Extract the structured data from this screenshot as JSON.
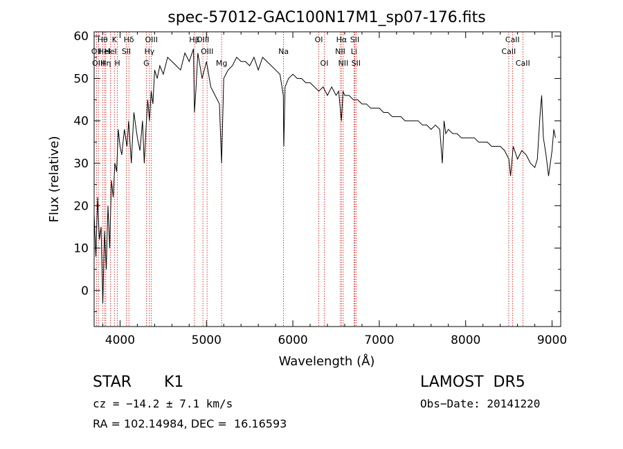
{
  "chart_data": {
    "type": "line",
    "title": "spec-57012-GAC100N17M1_sp07-176.fits",
    "xlabel": "Wavelength (Å)",
    "ylabel": "Flux (relative)",
    "xlim": [
      3700,
      9100
    ],
    "ylim": [
      -8.5,
      61
    ],
    "xticks": [
      4000,
      5000,
      6000,
      7000,
      8000,
      9000
    ],
    "yticks": [
      0,
      10,
      20,
      30,
      40,
      50,
      60
    ],
    "grid": false,
    "line_color": "#000000",
    "line_marker_color": "#cc0000",
    "series": [
      {
        "x": [
          3700,
          3720,
          3740,
          3760,
          3780,
          3800,
          3820,
          3840,
          3860,
          3880,
          3900,
          3920,
          3940,
          3960,
          3980,
          4000,
          4020,
          4050,
          4080,
          4100,
          4130,
          4160,
          4200,
          4230,
          4260,
          4280,
          4300,
          4320,
          4340,
          4360,
          4380,
          4400,
          4430,
          4460,
          4500,
          4550,
          4600,
          4650,
          4700,
          4750,
          4800,
          4850,
          4861,
          4880,
          4900,
          4950,
          5000,
          5050,
          5100,
          5150,
          5175,
          5200,
          5250,
          5300,
          5350,
          5400,
          5450,
          5500,
          5550,
          5600,
          5650,
          5700,
          5750,
          5800,
          5850,
          5890,
          5895,
          5910,
          5950,
          6000,
          6050,
          6100,
          6150,
          6200,
          6250,
          6300,
          6350,
          6400,
          6450,
          6500,
          6530,
          6563,
          6580,
          6600,
          6650,
          6700,
          6750,
          6800,
          6850,
          6900,
          6950,
          7000,
          7050,
          7100,
          7150,
          7200,
          7250,
          7300,
          7350,
          7400,
          7450,
          7500,
          7550,
          7600,
          7650,
          7700,
          7730,
          7750,
          7770,
          7800,
          7850,
          7900,
          7950,
          8000,
          8050,
          8100,
          8150,
          8200,
          8250,
          8300,
          8350,
          8400,
          8450,
          8500,
          8520,
          8550,
          8600,
          8650,
          8700,
          8750,
          8800,
          8830,
          8860,
          8880,
          8900,
          8930,
          8960,
          9000,
          9020,
          9040
        ],
        "y": [
          18,
          8,
          22,
          12,
          15,
          -3,
          14,
          5,
          20,
          10,
          26,
          22,
          30,
          28,
          38,
          34,
          32,
          38,
          34,
          40,
          30,
          42,
          36,
          33,
          40,
          30,
          38,
          45,
          40,
          47,
          44,
          52,
          50,
          53,
          51,
          55,
          54,
          53,
          52,
          56,
          54,
          57,
          42,
          48,
          56,
          50,
          54,
          48,
          46,
          44,
          30,
          50,
          52,
          53,
          55,
          54,
          54,
          53,
          55,
          52,
          55,
          54,
          53,
          52,
          51,
          46,
          34,
          48,
          50,
          51,
          50,
          50,
          49,
          49,
          48,
          47,
          48,
          46,
          48,
          46,
          47,
          40,
          47,
          46,
          46,
          45,
          45,
          44,
          44,
          43,
          43,
          43,
          42,
          42,
          41,
          41,
          41,
          40,
          40,
          40,
          40,
          39,
          39,
          38,
          39,
          38,
          30,
          40,
          37,
          38,
          37,
          37,
          36,
          36,
          36,
          36,
          35,
          35,
          35,
          34,
          34,
          34,
          33,
          31,
          27,
          34,
          31,
          33,
          32,
          30,
          29,
          31,
          41,
          46,
          36,
          32,
          27,
          33,
          38,
          36
        ]
      }
    ],
    "line_markers": [
      {
        "x": 3727,
        "label": "OII",
        "row": 1
      },
      {
        "x": 3750,
        "label": "OIII",
        "row": 2
      },
      {
        "x": 3798,
        "label": "Hθ",
        "row": 0
      },
      {
        "x": 3820,
        "label": "HeI",
        "row": 1
      },
      {
        "x": 3835,
        "label": "Hη",
        "row": 2
      },
      {
        "x": 3889,
        "label": "HeI",
        "row": 1
      },
      {
        "x": 3934,
        "label": "K",
        "row": 0
      },
      {
        "x": 3969,
        "label": "H",
        "row": 2
      },
      {
        "x": 4072,
        "label": "SII",
        "row": 1
      },
      {
        "x": 4102,
        "label": "Hδ",
        "row": 0
      },
      {
        "x": 4304,
        "label": "G",
        "row": 2
      },
      {
        "x": 4340,
        "label": "Hγ",
        "row": 1
      },
      {
        "x": 4363,
        "label": "OIII",
        "row": 0
      },
      {
        "x": 4861,
        "label": "Hβ",
        "row": 0
      },
      {
        "x": 4959,
        "label": "OIII",
        "row": 0
      },
      {
        "x": 5007,
        "label": "OIII",
        "row": 1
      },
      {
        "x": 5175,
        "label": "Mg",
        "row": 2
      },
      {
        "x": 5892,
        "label": "Na",
        "row": 1
      },
      {
        "x": 6300,
        "label": "OI",
        "row": 0
      },
      {
        "x": 6364,
        "label": "OI",
        "row": 2
      },
      {
        "x": 6548,
        "label": "NII",
        "row": 1
      },
      {
        "x": 6563,
        "label": "Hα",
        "row": 0
      },
      {
        "x": 6583,
        "label": "NII",
        "row": 2
      },
      {
        "x": 6707,
        "label": "Li",
        "row": 1
      },
      {
        "x": 6716,
        "label": "SII",
        "row": 0
      },
      {
        "x": 6731,
        "label": "SII",
        "row": 2
      },
      {
        "x": 8498,
        "label": "CaII",
        "row": 1
      },
      {
        "x": 8542,
        "label": "CaII",
        "row": 0
      },
      {
        "x": 8662,
        "label": "CaII",
        "row": 2
      }
    ]
  },
  "info": {
    "object_class": "STAR",
    "subclass": "K1",
    "survey": "LAMOST  DR5",
    "velocity": "cz = −14.2 ± 7.1 km/s",
    "obs_date": "Obs−Date: 20141220",
    "coords": "RA = 102.14984, DEC =  16.16593"
  }
}
